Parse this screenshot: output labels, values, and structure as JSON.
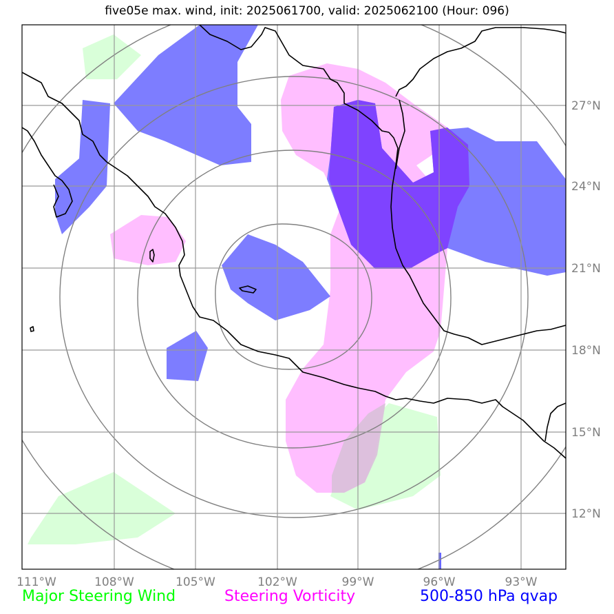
{
  "title": "five05e max. wind, init: 2025061700, valid: 2025062100 (Hour: 096)",
  "map": {
    "lon_ticks": [
      "111°W",
      "108°W",
      "105°W",
      "102°W",
      "99°W",
      "96°W",
      "93°W"
    ],
    "lat_ticks": [
      "27°N",
      "24°N",
      "21°N",
      "18°N",
      "15°N",
      "12°N"
    ]
  },
  "legend": {
    "wind": {
      "label": "Major Steering Wind",
      "color": "#00ff00"
    },
    "vorticity": {
      "label": "Steering Vorticity",
      "color": "#ff00ff"
    },
    "qvap": {
      "label": "500-850 hPa qvap",
      "color": "#0000ff"
    }
  },
  "colors": {
    "wind_fill": "#ccffcc",
    "vorticity_fill": "#ffb3ff",
    "qvap_fill": "#6666ff",
    "grid": "#999999",
    "range_ring": "#808080",
    "coastline": "#000000"
  }
}
